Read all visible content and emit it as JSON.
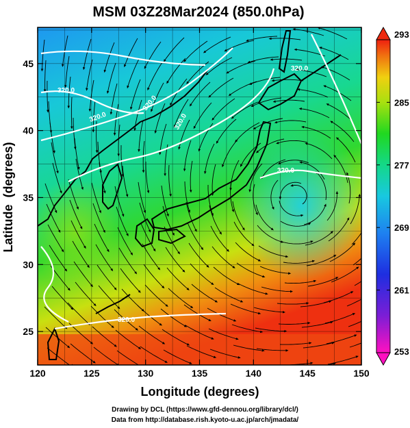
{
  "title": "MSM 03Z28Mar2024 (850.0hPa)",
  "x_axis": {
    "label": "Longitude (degrees)",
    "ticks": [
      "120",
      "125",
      "130",
      "135",
      "140",
      "145",
      "150"
    ]
  },
  "y_axis": {
    "label": "Latitude  (degrees)",
    "ticks": [
      "25",
      "30",
      "35",
      "40",
      "45"
    ]
  },
  "colorbar": {
    "min": 253,
    "max": 293,
    "ticks": [
      "293",
      "285",
      "277",
      "269",
      "261",
      "253"
    ],
    "colors": [
      "#ff00d0",
      "#8a1fd2",
      "#2020e0",
      "#1e78f0",
      "#18c8e0",
      "#14d88a",
      "#20d820",
      "#98e010",
      "#f0e010",
      "#f09010",
      "#ef2a10"
    ]
  },
  "contours": {
    "labels": [
      "320.0",
      "320.0",
      "320.0",
      "320.0",
      "320.0",
      "320.0",
      "320.0"
    ]
  },
  "map": {
    "extent": {
      "lon": [
        120,
        150
      ],
      "lat": [
        22.5,
        47.7
      ]
    },
    "grid_spacing_deg": 2.5,
    "streamlines": true,
    "low_pressure_center": {
      "lon": 144,
      "lat": 35
    }
  },
  "credits": {
    "line1": "Drawing by DCL (https://www.gfd-dennou.org/library/dcl/)",
    "line2": "Data from http://database.rish.kyoto-u.ac.jp/arch/jmadata/"
  }
}
